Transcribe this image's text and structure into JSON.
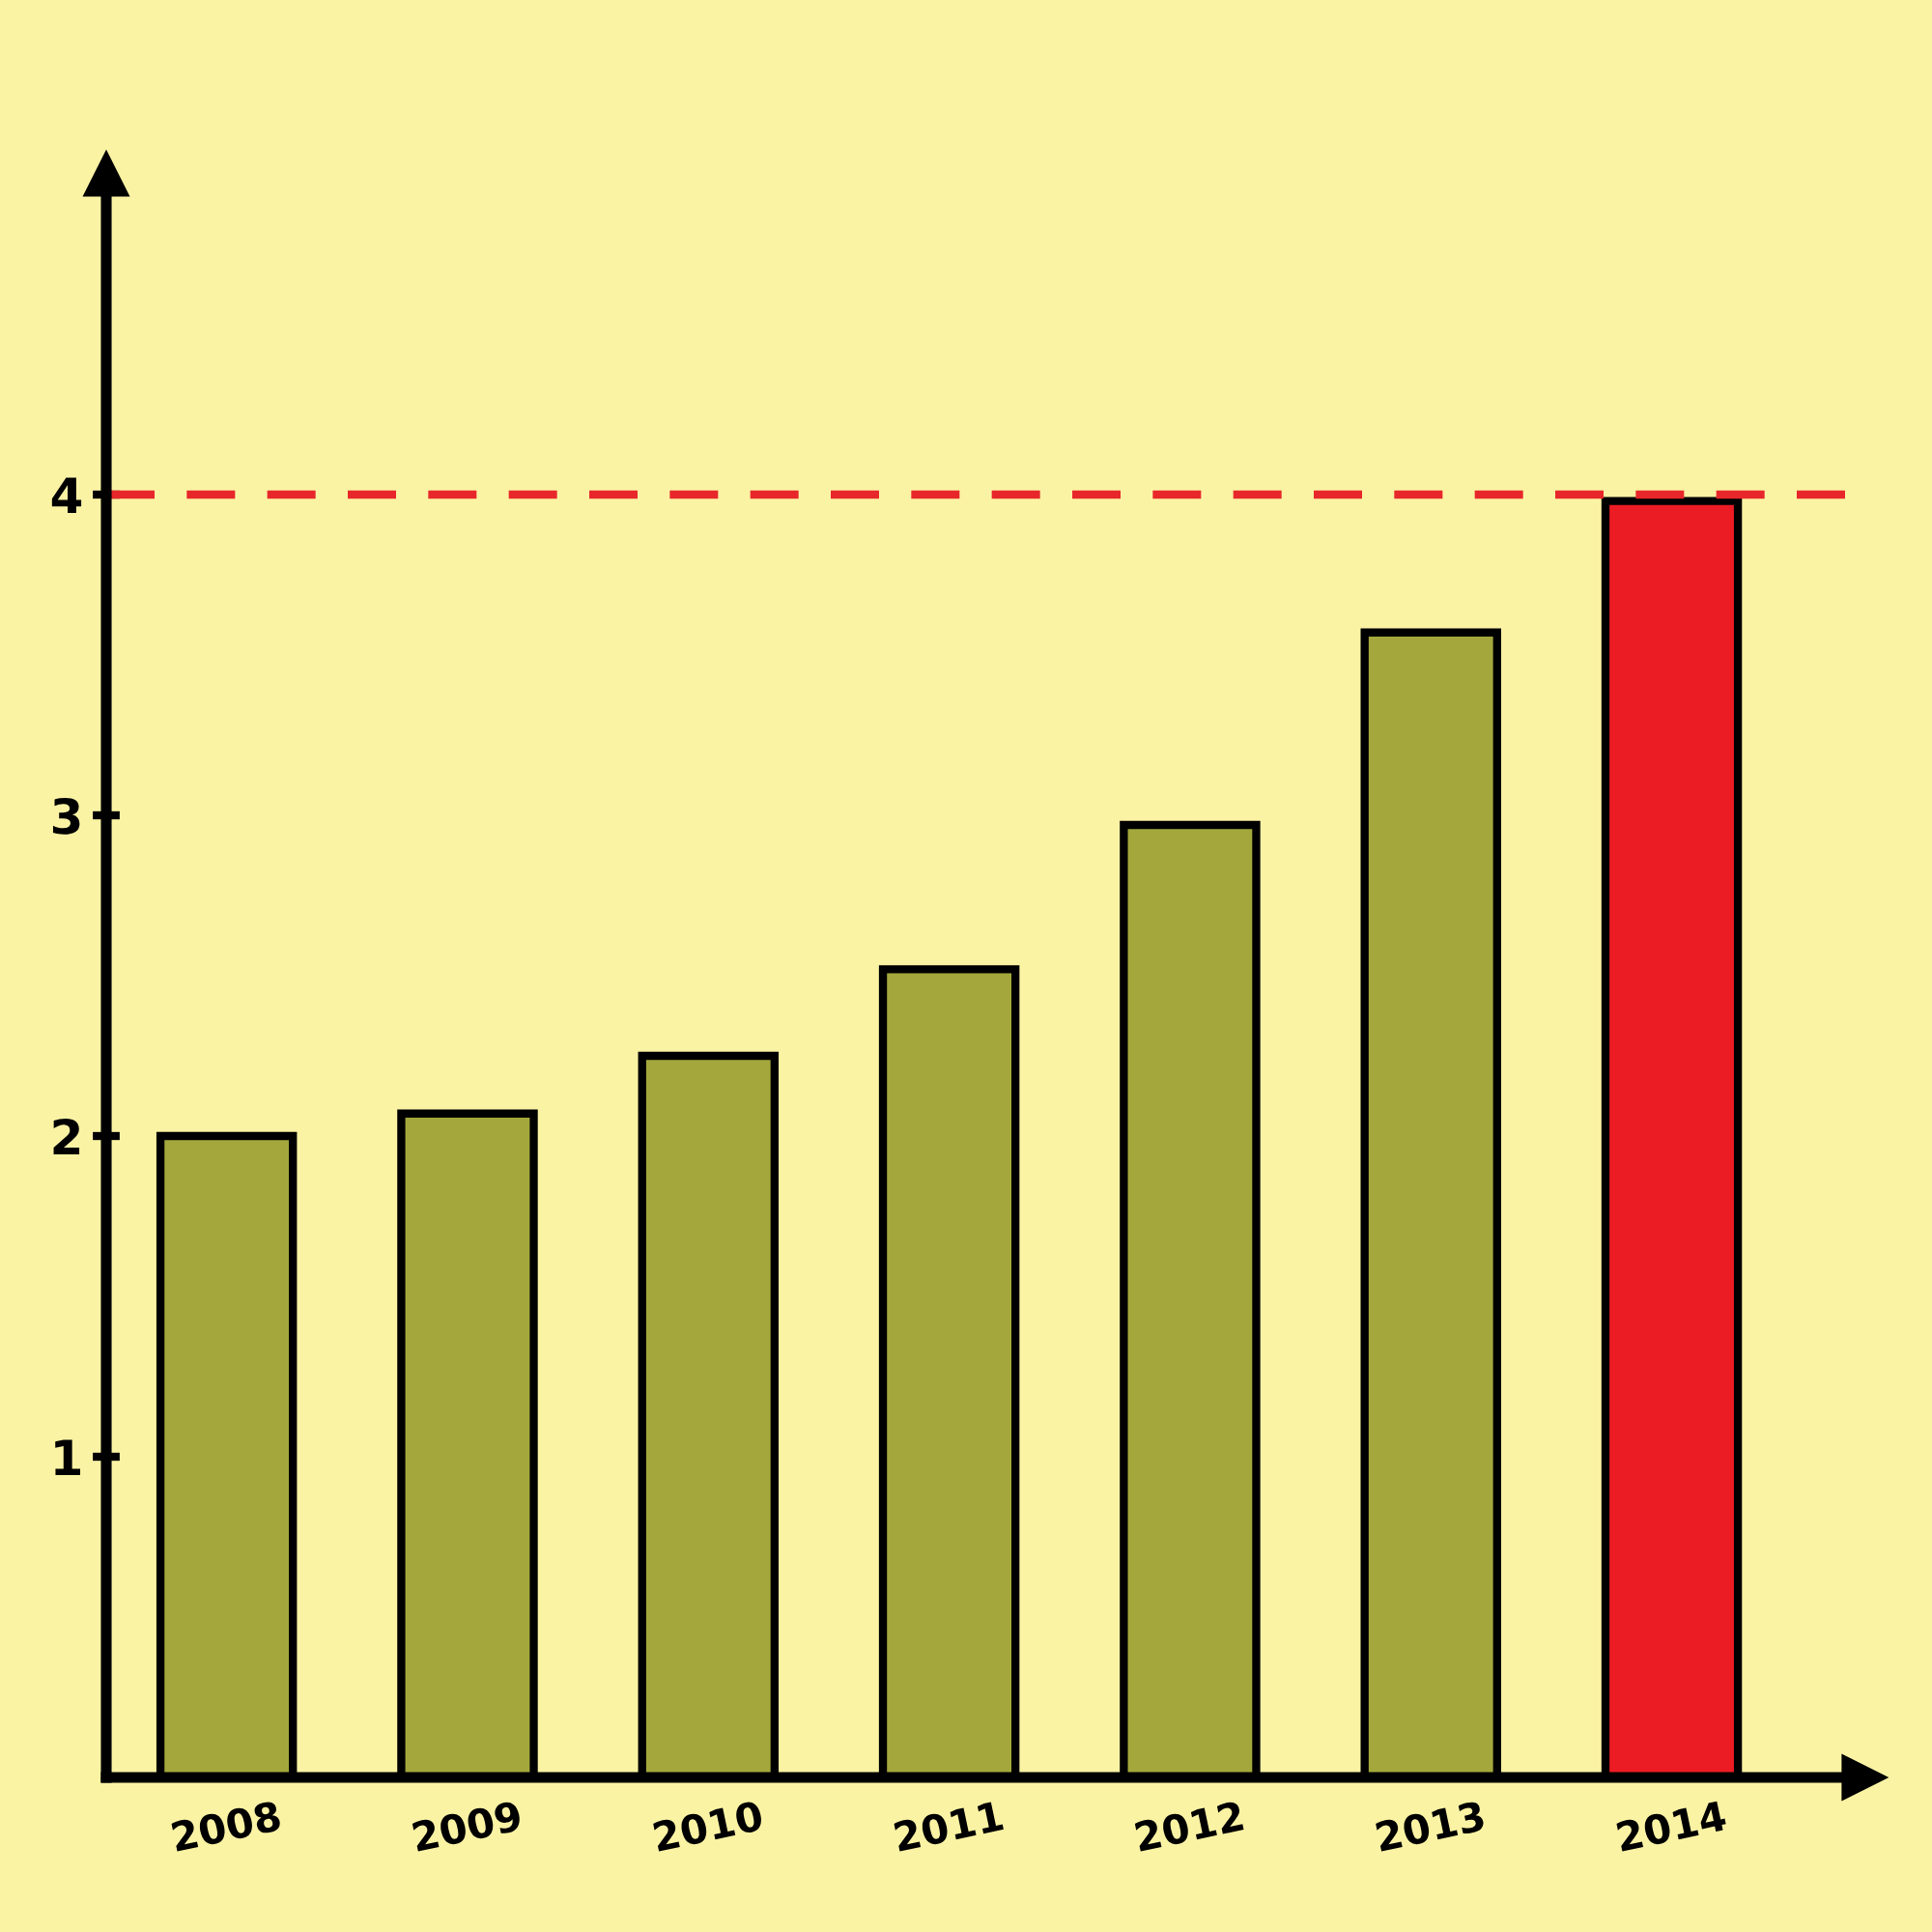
{
  "chart_data": {
    "type": "bar",
    "categories": [
      "2008",
      "2009",
      "2010",
      "2011",
      "2012",
      "2013",
      "2014"
    ],
    "values": [
      2.0,
      2.07,
      2.25,
      2.52,
      2.97,
      3.57,
      3.98
    ],
    "colors": [
      "#a4a83c",
      "#a4a83c",
      "#a4a83c",
      "#a4a83c",
      "#a4a83c",
      "#a4a83c",
      "#ec1c24"
    ],
    "ylim": [
      0,
      5
    ],
    "yticks": [
      1,
      2,
      3,
      4
    ],
    "ref_lines": [
      {
        "axis": "y",
        "value": 4,
        "color": "#e8272a",
        "line_style": "dashed"
      }
    ],
    "grid": false,
    "legend": false
  }
}
